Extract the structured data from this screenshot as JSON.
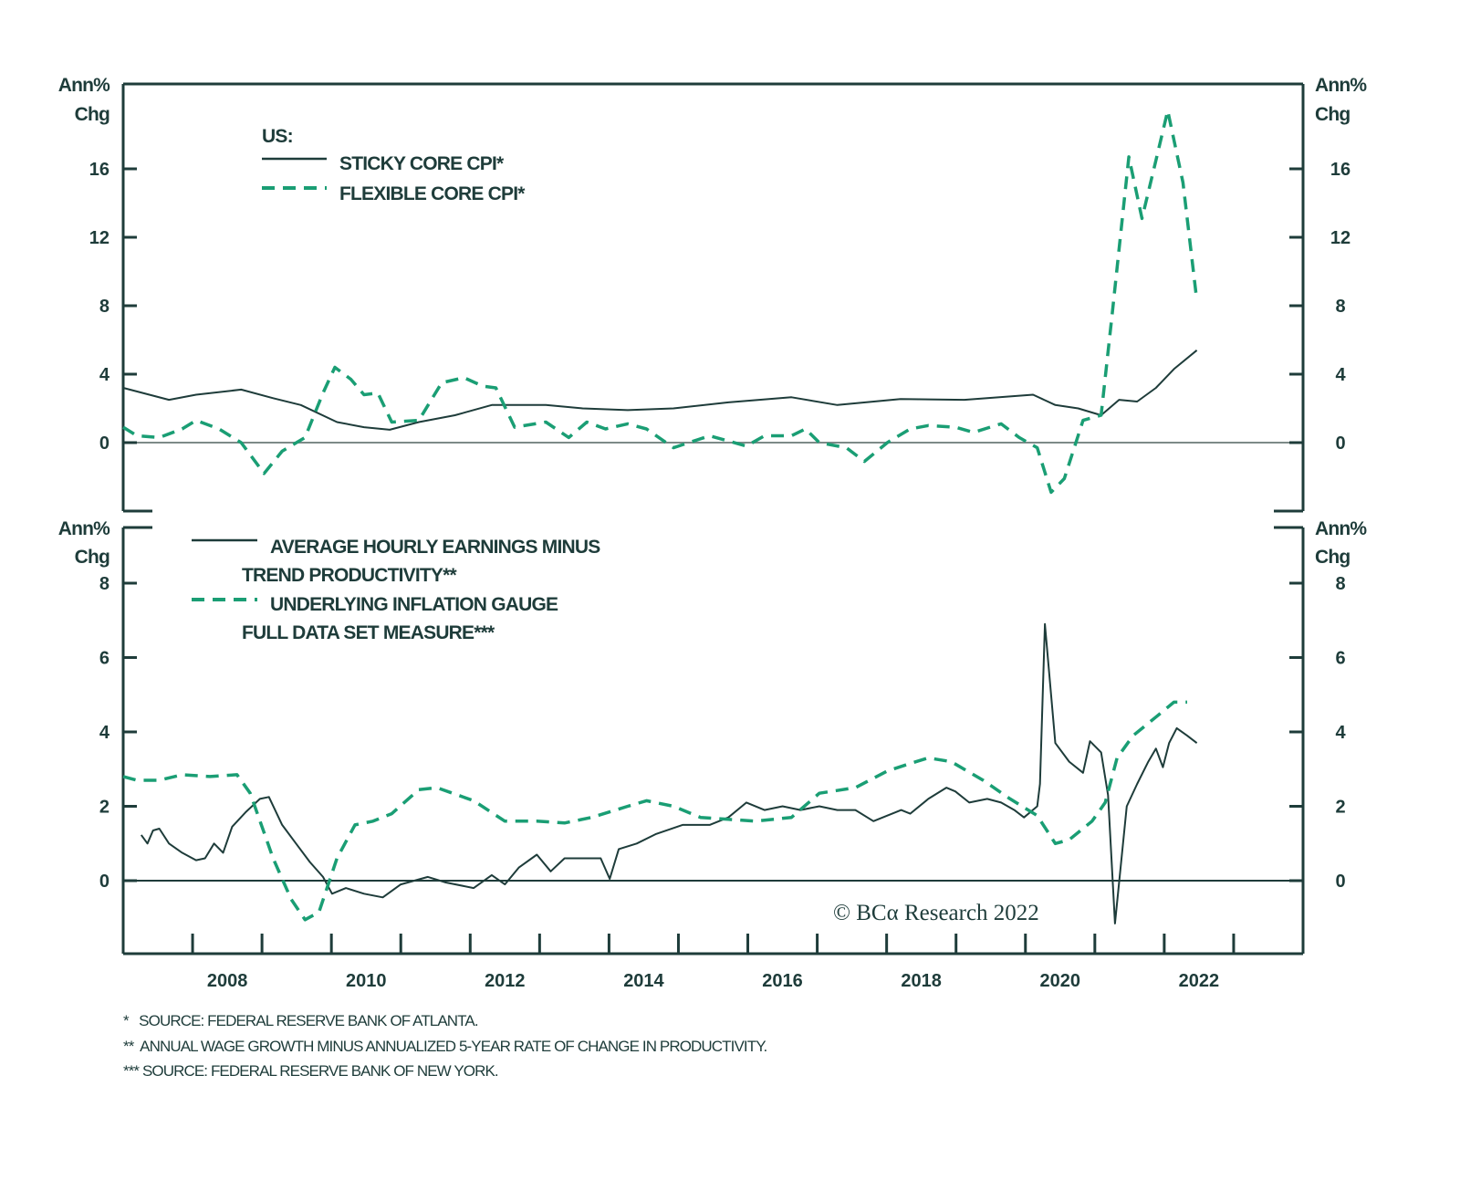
{
  "colors": {
    "dark": "#1e3c3a",
    "green": "#1a9e74",
    "zero": "#7d8a88"
  },
  "chart_data": [
    {
      "type": "line",
      "panel": "top",
      "ylabel_line1": "Ann%",
      "ylabel_line2": "Chg",
      "ylim": [
        -4,
        21
      ],
      "yticks": [
        0,
        4,
        8,
        12,
        16
      ],
      "xlim": [
        2007,
        2024
      ],
      "legend_title": "US:",
      "series": [
        {
          "name": "STICKY CORE CPI*",
          "style": "solid",
          "points": [
            [
              2007.0,
              3.2
            ],
            [
              2007.66,
              2.5
            ],
            [
              2008.05,
              2.8
            ],
            [
              2008.7,
              3.1
            ],
            [
              2009.16,
              2.6
            ],
            [
              2009.56,
              2.2
            ],
            [
              2010.08,
              1.2
            ],
            [
              2010.47,
              0.9
            ],
            [
              2010.84,
              0.75
            ],
            [
              2011.26,
              1.2
            ],
            [
              2011.78,
              1.6
            ],
            [
              2012.31,
              2.2
            ],
            [
              2013.09,
              2.2
            ],
            [
              2013.62,
              2.0
            ],
            [
              2014.27,
              1.9
            ],
            [
              2014.93,
              2.0
            ],
            [
              2015.72,
              2.35
            ],
            [
              2016.63,
              2.65
            ],
            [
              2017.29,
              2.2
            ],
            [
              2018.2,
              2.55
            ],
            [
              2019.12,
              2.5
            ],
            [
              2020.11,
              2.8
            ],
            [
              2020.43,
              2.2
            ],
            [
              2020.76,
              2.0
            ],
            [
              2021.09,
              1.6
            ],
            [
              2021.35,
              2.5
            ],
            [
              2021.61,
              2.4
            ],
            [
              2021.88,
              3.2
            ],
            [
              2022.14,
              4.3
            ],
            [
              2022.47,
              5.4
            ]
          ]
        },
        {
          "name": "FLEXIBLE CORE CPI*",
          "style": "dashed",
          "points": [
            [
              2007.0,
              0.9
            ],
            [
              2007.2,
              0.4
            ],
            [
              2007.52,
              0.3
            ],
            [
              2007.85,
              0.8
            ],
            [
              2008.05,
              1.3
            ],
            [
              2008.38,
              0.8
            ],
            [
              2008.7,
              0.0
            ],
            [
              2009.03,
              -1.8
            ],
            [
              2009.29,
              -0.5
            ],
            [
              2009.62,
              0.3
            ],
            [
              2009.88,
              2.9
            ],
            [
              2010.05,
              4.4
            ],
            [
              2010.28,
              3.7
            ],
            [
              2010.47,
              2.8
            ],
            [
              2010.67,
              2.9
            ],
            [
              2010.87,
              1.2
            ],
            [
              2011.26,
              1.3
            ],
            [
              2011.59,
              3.5
            ],
            [
              2011.91,
              3.8
            ],
            [
              2012.18,
              3.3
            ],
            [
              2012.37,
              3.2
            ],
            [
              2012.64,
              0.9
            ],
            [
              2013.09,
              1.2
            ],
            [
              2013.42,
              0.3
            ],
            [
              2013.68,
              1.2
            ],
            [
              2013.95,
              0.8
            ],
            [
              2014.27,
              1.1
            ],
            [
              2014.54,
              0.8
            ],
            [
              2014.93,
              -0.3
            ],
            [
              2015.45,
              0.4
            ],
            [
              2015.98,
              -0.2
            ],
            [
              2016.24,
              0.4
            ],
            [
              2016.63,
              0.4
            ],
            [
              2016.83,
              0.8
            ],
            [
              2017.03,
              0.0
            ],
            [
              2017.42,
              -0.3
            ],
            [
              2017.68,
              -1.1
            ],
            [
              2018.01,
              0.0
            ],
            [
              2018.34,
              0.8
            ],
            [
              2018.6,
              1.0
            ],
            [
              2018.99,
              0.9
            ],
            [
              2019.25,
              0.6
            ],
            [
              2019.65,
              1.1
            ],
            [
              2019.91,
              0.3
            ],
            [
              2020.17,
              -0.3
            ],
            [
              2020.37,
              -2.9
            ],
            [
              2020.56,
              -2.1
            ],
            [
              2020.83,
              1.3
            ],
            [
              2021.09,
              1.6
            ],
            [
              2021.25,
              7.5
            ],
            [
              2021.49,
              16.7
            ],
            [
              2021.68,
              13.1
            ],
            [
              2021.88,
              16.5
            ],
            [
              2022.05,
              19.4
            ],
            [
              2022.27,
              15.2
            ],
            [
              2022.47,
              8.3
            ]
          ]
        }
      ]
    },
    {
      "type": "line",
      "panel": "bottom",
      "ylabel_line1": "Ann%",
      "ylabel_line2": "Chg",
      "ylim": [
        -2,
        9.5
      ],
      "yticks": [
        0,
        2,
        4,
        6,
        8
      ],
      "xlim": [
        2007,
        2024
      ],
      "xticklabels": [
        "2008",
        "2010",
        "2012",
        "2014",
        "2016",
        "2018",
        "2020",
        "2022"
      ],
      "series": [
        {
          "name_line1": "AVERAGE HOURLY EARNINGS MINUS",
          "name_line2": "TREND PRODUCTIVITY**",
          "style": "solid",
          "points": [
            [
              2007.26,
              1.23
            ],
            [
              2007.35,
              1.0
            ],
            [
              2007.43,
              1.35
            ],
            [
              2007.52,
              1.4
            ],
            [
              2007.66,
              1.0
            ],
            [
              2007.85,
              0.75
            ],
            [
              2008.05,
              0.55
            ],
            [
              2008.18,
              0.6
            ],
            [
              2008.31,
              1.0
            ],
            [
              2008.44,
              0.75
            ],
            [
              2008.57,
              1.45
            ],
            [
              2008.77,
              1.85
            ],
            [
              2008.97,
              2.2
            ],
            [
              2009.1,
              2.25
            ],
            [
              2009.29,
              1.5
            ],
            [
              2009.49,
              1.0
            ],
            [
              2009.69,
              0.5
            ],
            [
              2009.88,
              0.1
            ],
            [
              2010.01,
              -0.35
            ],
            [
              2010.21,
              -0.2
            ],
            [
              2010.47,
              -0.35
            ],
            [
              2010.74,
              -0.45
            ],
            [
              2011.0,
              -0.1
            ],
            [
              2011.39,
              0.1
            ],
            [
              2011.65,
              -0.05
            ],
            [
              2012.05,
              -0.2
            ],
            [
              2012.31,
              0.15
            ],
            [
              2012.5,
              -0.1
            ],
            [
              2012.7,
              0.35
            ],
            [
              2012.96,
              0.7
            ],
            [
              2013.16,
              0.25
            ],
            [
              2013.36,
              0.6
            ],
            [
              2013.62,
              0.6
            ],
            [
              2013.88,
              0.6
            ],
            [
              2014.01,
              0.05
            ],
            [
              2014.14,
              0.85
            ],
            [
              2014.4,
              1.0
            ],
            [
              2014.67,
              1.25
            ],
            [
              2015.06,
              1.5
            ],
            [
              2015.45,
              1.5
            ],
            [
              2015.72,
              1.7
            ],
            [
              2015.98,
              2.1
            ],
            [
              2016.24,
              1.9
            ],
            [
              2016.5,
              2.0
            ],
            [
              2016.76,
              1.9
            ],
            [
              2017.03,
              2.0
            ],
            [
              2017.29,
              1.9
            ],
            [
              2017.55,
              1.9
            ],
            [
              2017.81,
              1.6
            ],
            [
              2018.01,
              1.75
            ],
            [
              2018.21,
              1.9
            ],
            [
              2018.34,
              1.8
            ],
            [
              2018.6,
              2.2
            ],
            [
              2018.86,
              2.5
            ],
            [
              2018.99,
              2.4
            ],
            [
              2019.19,
              2.1
            ],
            [
              2019.45,
              2.2
            ],
            [
              2019.65,
              2.1
            ],
            [
              2019.84,
              1.9
            ],
            [
              2019.98,
              1.7
            ],
            [
              2020.17,
              2.0
            ],
            [
              2020.21,
              2.6
            ],
            [
              2020.28,
              6.9
            ],
            [
              2020.43,
              3.7
            ],
            [
              2020.63,
              3.2
            ],
            [
              2020.83,
              2.9
            ],
            [
              2020.93,
              3.75
            ],
            [
              2021.09,
              3.45
            ],
            [
              2021.19,
              2.3
            ],
            [
              2021.29,
              -1.15
            ],
            [
              2021.46,
              2.0
            ],
            [
              2021.61,
              2.6
            ],
            [
              2021.77,
              3.2
            ],
            [
              2021.88,
              3.55
            ],
            [
              2021.98,
              3.05
            ],
            [
              2022.07,
              3.7
            ],
            [
              2022.18,
              4.1
            ],
            [
              2022.33,
              3.9
            ],
            [
              2022.47,
              3.7
            ]
          ]
        },
        {
          "name_line1": "UNDERLYING INFLATION GAUGE",
          "name_line2": "FULL DATA SET MEASURE***",
          "style": "dashed",
          "points": [
            [
              2007.0,
              2.8
            ],
            [
              2007.2,
              2.7
            ],
            [
              2007.52,
              2.7
            ],
            [
              2007.85,
              2.85
            ],
            [
              2008.25,
              2.8
            ],
            [
              2008.64,
              2.85
            ],
            [
              2008.83,
              2.35
            ],
            [
              2009.16,
              0.6
            ],
            [
              2009.42,
              -0.5
            ],
            [
              2009.62,
              -1.05
            ],
            [
              2009.82,
              -0.85
            ],
            [
              2010.08,
              0.6
            ],
            [
              2010.34,
              1.5
            ],
            [
              2010.6,
              1.6
            ],
            [
              2010.87,
              1.8
            ],
            [
              2011.26,
              2.45
            ],
            [
              2011.52,
              2.5
            ],
            [
              2012.05,
              2.15
            ],
            [
              2012.5,
              1.6
            ],
            [
              2012.96,
              1.6
            ],
            [
              2013.36,
              1.55
            ],
            [
              2013.75,
              1.7
            ],
            [
              2014.27,
              2.0
            ],
            [
              2014.54,
              2.15
            ],
            [
              2014.93,
              2.0
            ],
            [
              2015.32,
              1.7
            ],
            [
              2015.72,
              1.65
            ],
            [
              2016.11,
              1.6
            ],
            [
              2016.63,
              1.7
            ],
            [
              2017.03,
              2.35
            ],
            [
              2017.55,
              2.5
            ],
            [
              2018.01,
              2.95
            ],
            [
              2018.34,
              3.15
            ],
            [
              2018.6,
              3.3
            ],
            [
              2018.93,
              3.2
            ],
            [
              2019.39,
              2.7
            ],
            [
              2019.78,
              2.2
            ],
            [
              2020.17,
              1.75
            ],
            [
              2020.43,
              1.0
            ],
            [
              2020.63,
              1.1
            ],
            [
              2020.96,
              1.6
            ],
            [
              2021.15,
              2.1
            ],
            [
              2021.32,
              3.3
            ],
            [
              2021.55,
              3.9
            ],
            [
              2021.88,
              4.4
            ],
            [
              2022.14,
              4.8
            ],
            [
              2022.33,
              4.8
            ]
          ]
        }
      ]
    }
  ],
  "copyright": "© BCα Research 2022",
  "footnotes": [
    "*   SOURCE: FEDERAL RESERVE BANK OF ATLANTA.",
    "**  ANNUAL WAGE GROWTH MINUS ANNUALIZED 5-YEAR RATE OF CHANGE IN PRODUCTIVITY.",
    "*** SOURCE: FEDERAL RESERVE BANK OF NEW YORK."
  ]
}
